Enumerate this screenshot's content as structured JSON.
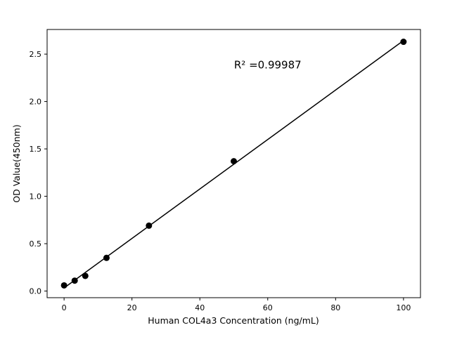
{
  "chart_data": {
    "type": "scatter",
    "title": "",
    "xlabel": "Human COL4a3 Concentration (ng/mL)",
    "ylabel": "OD Value(450nm)",
    "x": [
      0,
      3.125,
      6.25,
      12.5,
      25,
      50,
      100
    ],
    "y": [
      0.06,
      0.11,
      0.16,
      0.35,
      0.69,
      1.37,
      2.63
    ],
    "fit_line": true,
    "annotation": {
      "text": "R² =0.99987",
      "x": 60,
      "y": 2.35
    },
    "xlim": [
      -5,
      105
    ],
    "ylim": [
      -0.07,
      2.76
    ],
    "xticks": [
      0,
      20,
      40,
      60,
      80,
      100
    ],
    "yticks": [
      0.0,
      0.5,
      1.0,
      1.5,
      2.0,
      2.5
    ],
    "grid": false,
    "legend": null,
    "marker_color": "#000000",
    "line_color": "#000000"
  }
}
